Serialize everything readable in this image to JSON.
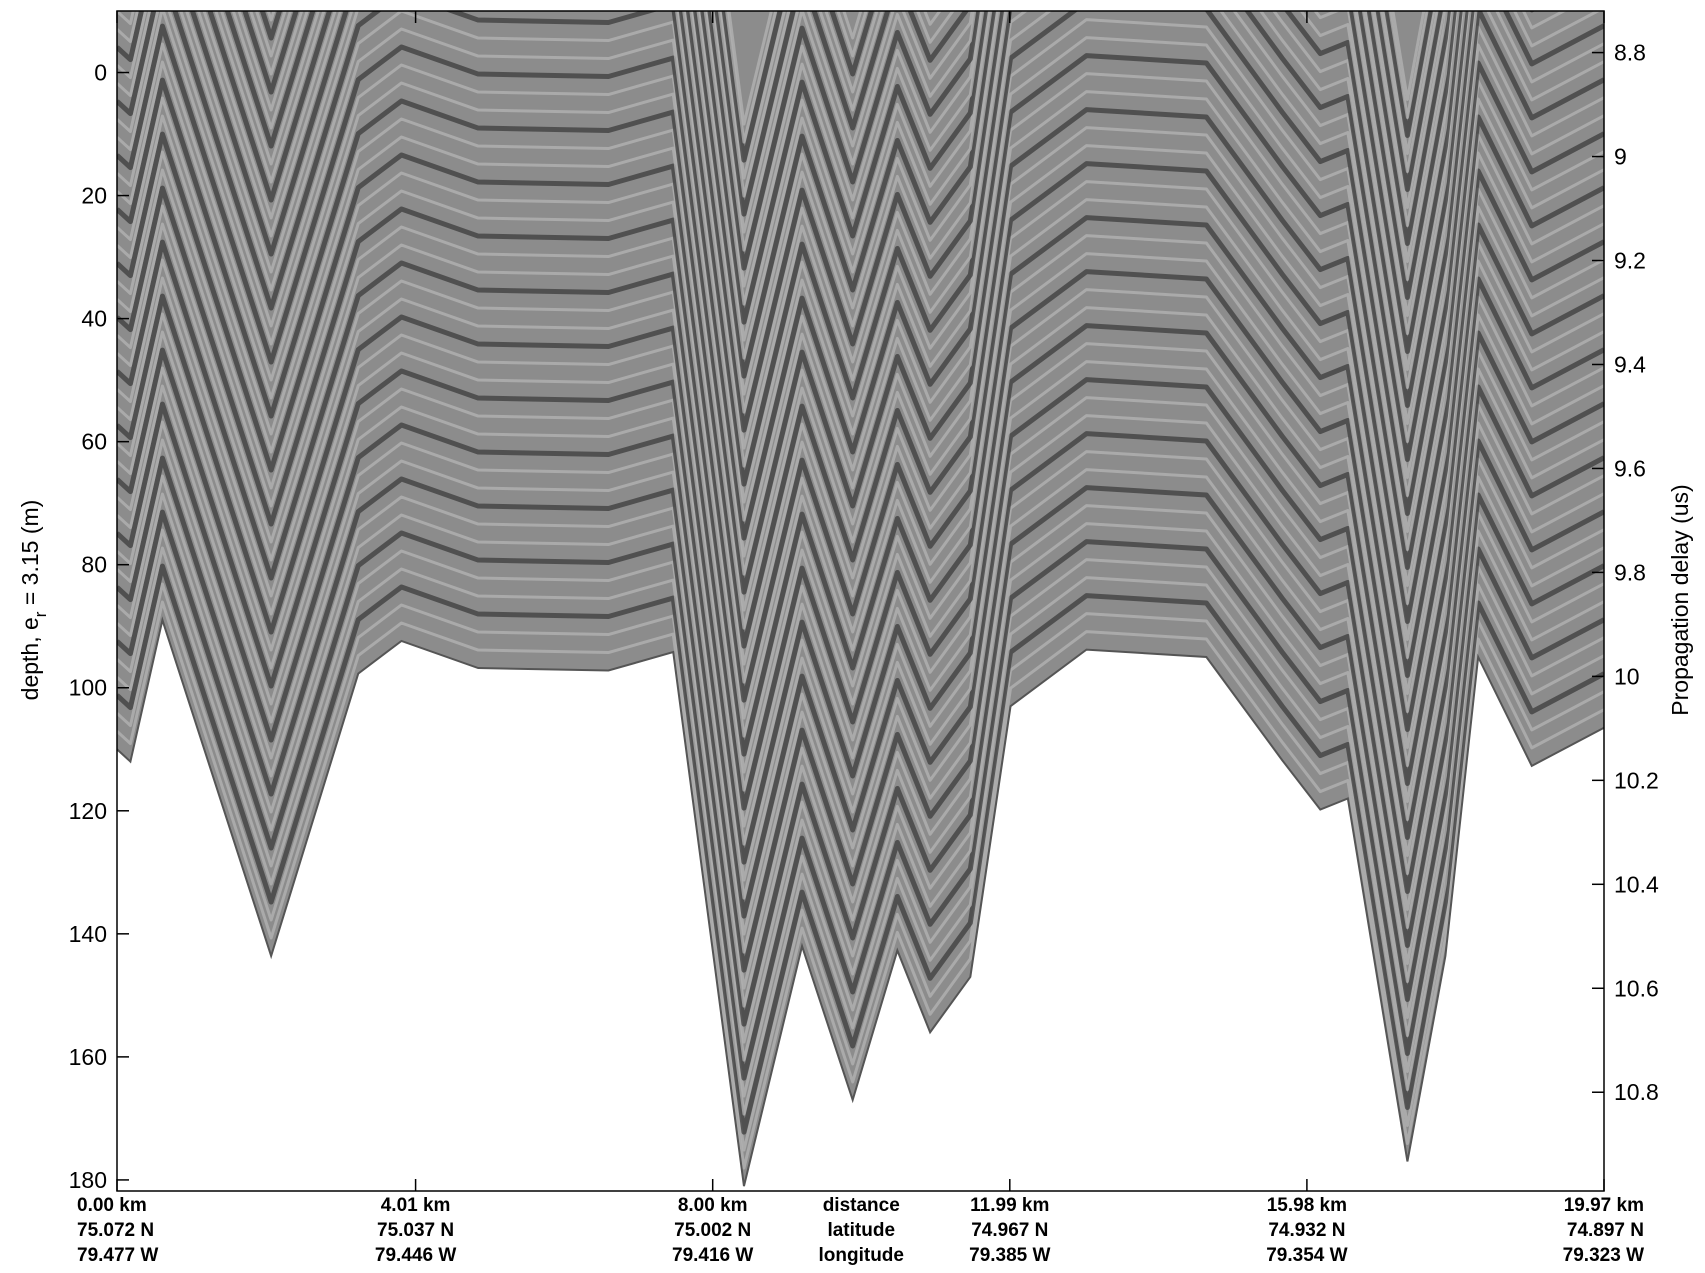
{
  "chart_data": {
    "type": "echogram",
    "ylabel": [
      "depth, e",
      "r",
      " = 3.15 (m)"
    ],
    "y2label": "Propagation delay (us)",
    "xlabel": [
      "distance",
      "latitude",
      "longitude"
    ],
    "xlim": [
      0,
      19.97
    ],
    "xticks": [
      {
        "value": 0,
        "label": "0.00 km"
      },
      {
        "value": 4.01,
        "label": "4.01 km"
      },
      {
        "value": 8.0,
        "label": "8.00 km"
      },
      {
        "value": 11.99,
        "label": "11.99 km"
      },
      {
        "value": 15.98,
        "label": "15.98 km"
      },
      {
        "value": 19.97,
        "label": "19.97 km"
      }
    ],
    "x_tick_latitudes": [
      "75.072 N",
      "75.037 N",
      "75.002 N",
      "74.967 N",
      "74.932 N",
      "74.897 N"
    ],
    "x_tick_longitudes": [
      "79.477 W",
      "79.446 W",
      "79.416 W",
      "79.385 W",
      "79.354 W",
      "79.323 W"
    ],
    "ylim": [
      -10,
      181.8
    ],
    "yticks": [
      0,
      20,
      40,
      60,
      80,
      100,
      120,
      140,
      160,
      180
    ],
    "y2lim": [
      8.72,
      10.99
    ],
    "y2ticks": [
      8.8,
      9,
      9.2,
      9.4,
      9.6,
      9.8,
      10,
      10.2,
      10.4,
      10.6,
      10.8
    ],
    "series": [
      {
        "name": "bed",
        "color": "#8c8c8c",
        "x": [
          0,
          0.18,
          0.61,
          2.07,
          3.24,
          3.82,
          4.85,
          6.6,
          7.47,
          8.42,
          9.2,
          9.88,
          10.48,
          10.92,
          11.46,
          12.0,
          13.02,
          14.63,
          15.65,
          16.16,
          16.53,
          17.33,
          17.84,
          18.28,
          19.0,
          19.97
        ],
        "values": [
          110,
          112,
          89,
          143.6,
          97.7,
          92.4,
          96.8,
          97.2,
          94.2,
          181,
          142,
          167,
          142.7,
          156,
          147,
          103,
          93.8,
          95,
          111.8,
          119.8,
          118,
          177,
          143.6,
          95,
          112.7,
          106.5
        ]
      }
    ]
  }
}
